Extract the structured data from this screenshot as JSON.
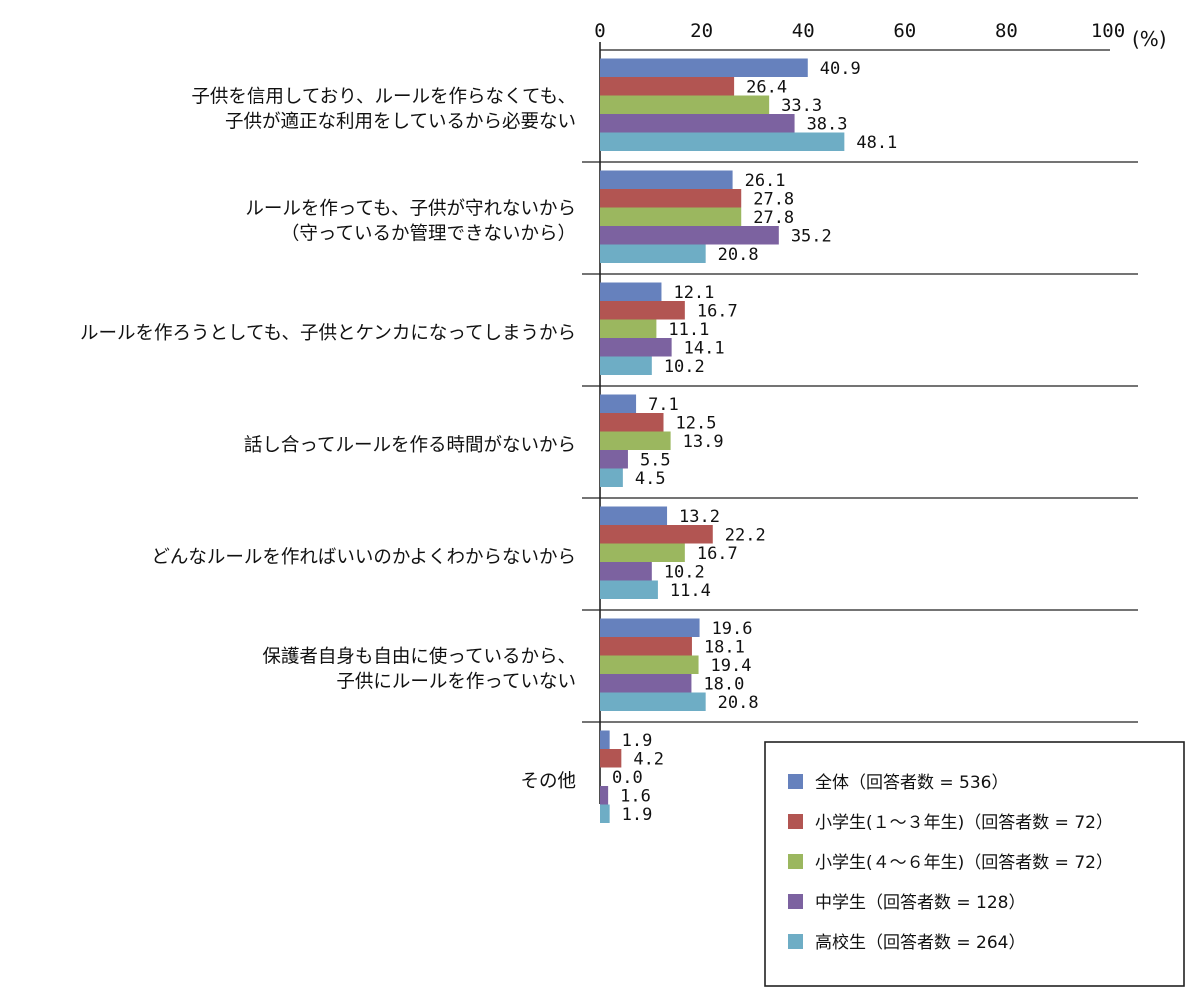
{
  "chart_data": {
    "type": "bar",
    "orientation": "horizontal",
    "unit": "(%)",
    "xlim": [
      0,
      100
    ],
    "ticks": [
      0,
      20,
      40,
      60,
      80,
      100
    ],
    "legend_position": "bottom-right",
    "categories": [
      [
        "子供を信用しており、ルールを作らなくても、",
        "子供が適正な利用をしているから必要ない"
      ],
      [
        "ルールを作っても、子供が守れないから",
        "（守っているか管理できないから）"
      ],
      [
        "ルールを作ろうとしても、子供とケンカになってしまうから"
      ],
      [
        "話し合ってルールを作る時間がないから"
      ],
      [
        "どんなルールを作ればいいのかよくわからないから"
      ],
      [
        "保護者自身も自由に使っているから、",
        "子供にルールを作っていない"
      ],
      [
        "その他"
      ]
    ],
    "series": [
      {
        "name": "全体（回答者数 = 536）",
        "color": "#6681bd",
        "values": [
          40.9,
          26.1,
          12.1,
          7.1,
          13.2,
          19.6,
          1.9
        ]
      },
      {
        "name": "小学生(１～３年生)（回答者数 = 72）",
        "color": "#b25552",
        "values": [
          26.4,
          27.8,
          16.7,
          12.5,
          22.2,
          18.1,
          4.2
        ]
      },
      {
        "name": "小学生(４～６年生)（回答者数 = 72）",
        "color": "#9bb75f",
        "values": [
          33.3,
          27.8,
          11.1,
          13.9,
          16.7,
          19.4,
          0.0
        ]
      },
      {
        "name": "中学生（回答者数 = 128）",
        "color": "#7c62a0",
        "values": [
          38.3,
          35.2,
          14.1,
          5.5,
          10.2,
          18.0,
          1.6
        ]
      },
      {
        "name": "高校生（回答者数 = 264）",
        "color": "#6eadc5",
        "values": [
          48.1,
          20.8,
          10.2,
          4.5,
          11.4,
          20.8,
          1.9
        ]
      }
    ]
  }
}
